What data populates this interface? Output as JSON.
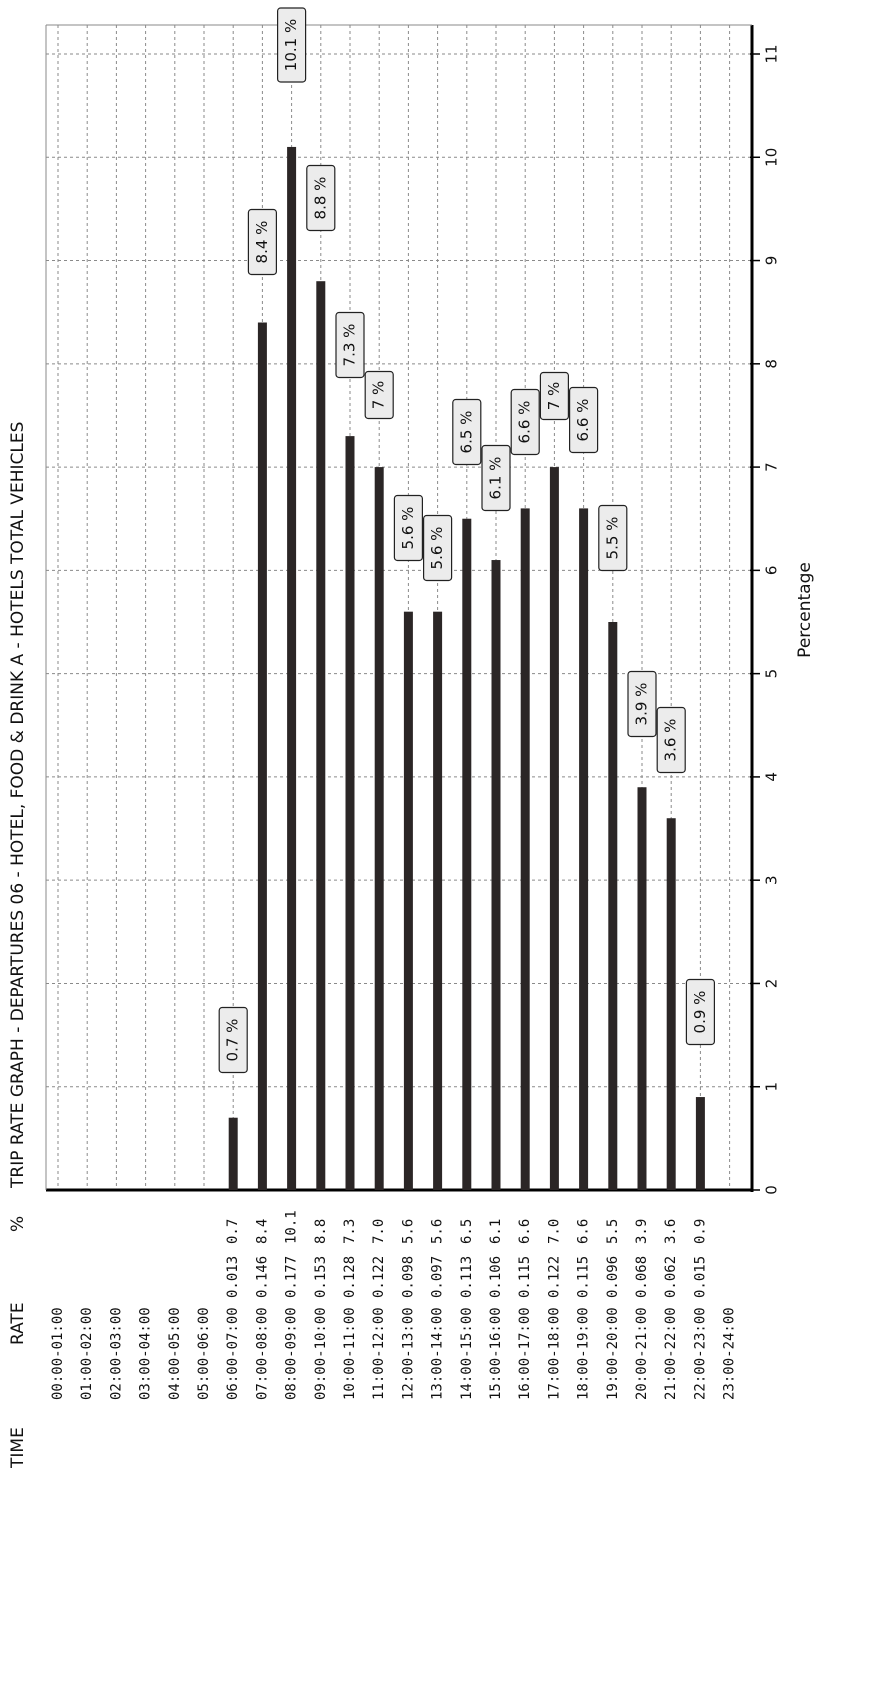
{
  "chart_data": {
    "type": "bar",
    "orientation": "horizontal",
    "title": "TRIP RATE GRAPH - DEPARTURES   06 - HOTEL, FOOD & DRINK  A - HOTELS   TOTAL VEHICLES",
    "xlabel": "Percentage",
    "xlim": [
      0,
      11
    ],
    "xticks": [
      "0",
      "1",
      "2",
      "3",
      "4",
      "5",
      "6",
      "7",
      "8",
      "9",
      "10",
      "11"
    ],
    "grid": true,
    "columns": {
      "time": "TIME",
      "rate": "RATE",
      "percent": "%"
    },
    "categories": [
      "00:00-01:00",
      "01:00-02:00",
      "02:00-03:00",
      "03:00-04:00",
      "04:00-05:00",
      "05:00-06:00",
      "06:00-07:00",
      "07:00-08:00",
      "08:00-09:00",
      "09:00-10:00",
      "10:00-11:00",
      "11:00-12:00",
      "12:00-13:00",
      "13:00-14:00",
      "14:00-15:00",
      "15:00-16:00",
      "16:00-17:00",
      "17:00-18:00",
      "18:00-19:00",
      "19:00-20:00",
      "20:00-21:00",
      "21:00-22:00",
      "22:00-23:00",
      "23:00-24:00"
    ],
    "rates": [
      "",
      "",
      "",
      "",
      "",
      "",
      "0.013",
      "0.146",
      "0.177",
      "0.153",
      "0.128",
      "0.122",
      "0.098",
      "0.097",
      "0.113",
      "0.106",
      "0.115",
      "0.122",
      "0.115",
      "0.096",
      "0.068",
      "0.062",
      "0.015",
      ""
    ],
    "percent_text": [
      "",
      "",
      "",
      "",
      "",
      "",
      "0.7",
      "8.4",
      "10.1",
      "8.8",
      "7.3",
      "7.0",
      "5.6",
      "5.6",
      "6.5",
      "6.1",
      "6.6",
      "7.0",
      "6.6",
      "5.5",
      "3.9",
      "3.6",
      "0.9",
      ""
    ],
    "values": [
      null,
      null,
      null,
      null,
      null,
      null,
      0.7,
      8.4,
      10.1,
      8.8,
      7.3,
      7.0,
      5.6,
      5.6,
      6.5,
      6.1,
      6.6,
      7.0,
      6.6,
      5.5,
      3.9,
      3.6,
      0.9,
      null
    ],
    "data_labels": [
      "",
      "",
      "",
      "",
      "",
      "",
      "0.7 %",
      "8.4 %",
      "10.1 %",
      "8.8 %",
      "7.3 %",
      "7 %",
      "5.6 %",
      "5.6 %",
      "6.5 %",
      "6.1 %",
      "6.6 %",
      "7 %",
      "6.6 %",
      "5.5 %",
      "3.9 %",
      "3.6 %",
      "0.9 %",
      ""
    ],
    "colors": {
      "bar": "#2b2626",
      "grid": "#8a8a8a",
      "label_box": "#ececec"
    }
  }
}
